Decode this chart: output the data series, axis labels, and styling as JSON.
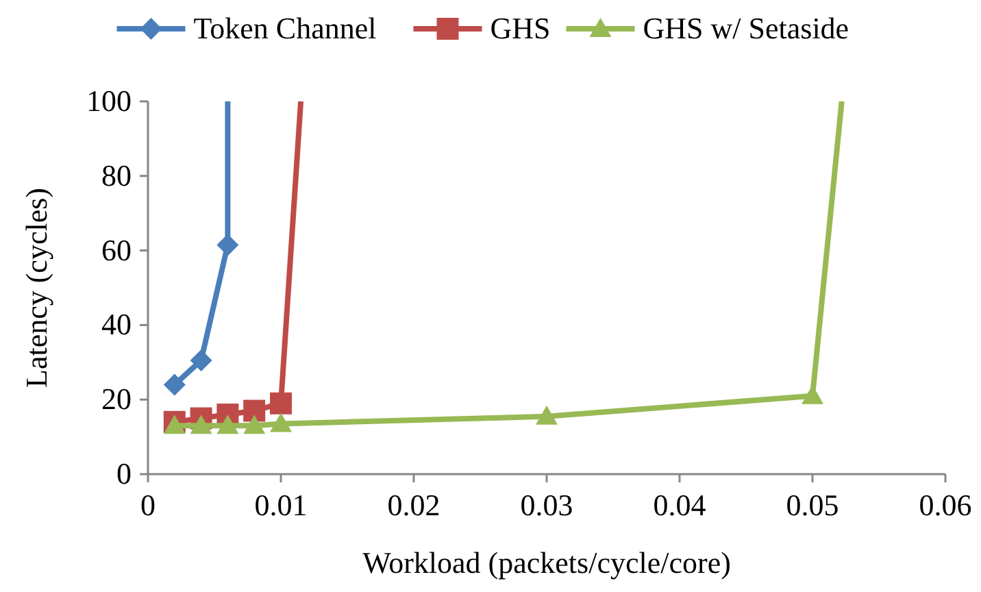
{
  "chart_data": {
    "type": "line",
    "xlabel": "Workload (packets/cycle/core)",
    "ylabel": "Latency (cycles)",
    "xlim": [
      0,
      0.06
    ],
    "xticks": [
      0,
      0.01,
      0.02,
      0.03,
      0.04,
      0.05,
      0.06
    ],
    "ylim": [
      0,
      100
    ],
    "yticks": [
      0,
      20,
      40,
      60,
      80,
      100
    ],
    "grid": false,
    "legend": "top",
    "series": [
      {
        "name": "Token Channel",
        "color": "#4a7ebb",
        "marker": "diamond",
        "x": [
          0.002,
          0.004,
          0.006,
          0.006
        ],
        "values": [
          24,
          30.5,
          61.5,
          100
        ]
      },
      {
        "name": "GHS",
        "color": "#be4b48",
        "marker": "square",
        "x": [
          0.002,
          0.004,
          0.006,
          0.008,
          0.01,
          0.0115
        ],
        "values": [
          14,
          15,
          16,
          17,
          19,
          100
        ]
      },
      {
        "name": "GHS w/ Setaside",
        "color": "#98b954",
        "marker": "triangle",
        "x": [
          0.002,
          0.004,
          0.006,
          0.008,
          0.01,
          0.03,
          0.05,
          0.0522
        ],
        "values": [
          13,
          13,
          13,
          13,
          13.5,
          15.5,
          21,
          100
        ]
      }
    ]
  }
}
